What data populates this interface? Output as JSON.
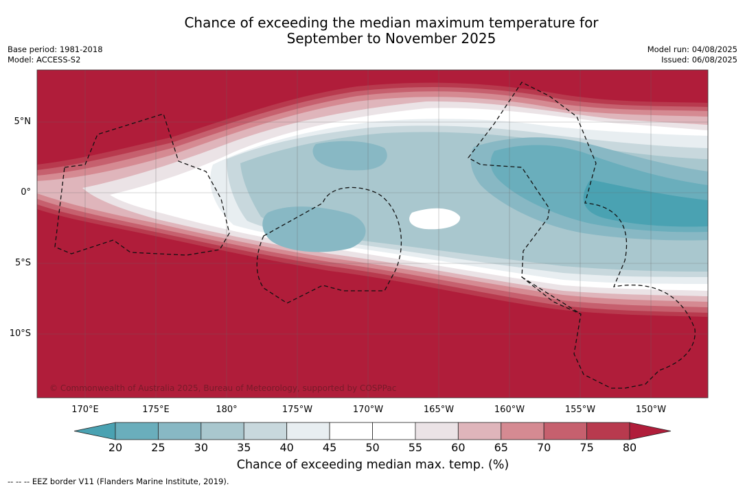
{
  "header": {
    "title_line1": "Chance of exceeding the median maximum temperature for",
    "title_line2": "September to November 2025",
    "base_period": "Base period: 1981-2018",
    "model": "Model: ACCESS-S2",
    "model_run": "Model run: 04/08/2025",
    "issued": "Issued: 06/08/2025"
  },
  "map": {
    "longitude_labels": [
      "170°E",
      "175°E",
      "180°",
      "175°W",
      "170°W",
      "165°W",
      "160°W",
      "155°W",
      "150°W"
    ],
    "latitude_labels": [
      "5°N",
      "0°",
      "5°S",
      "10°S"
    ],
    "copyright": "© Commonwealth of Australia 2025, Bureau of Meteorology, supported by COSPPac"
  },
  "colorbar": {
    "ticks": [
      "20",
      "25",
      "30",
      "35",
      "40",
      "45",
      "50",
      "55",
      "60",
      "65",
      "70",
      "75",
      "80"
    ],
    "colors": [
      "#4aa2b2",
      "#6aaebc",
      "#88b8c4",
      "#a9c7ce",
      "#c8d8dd",
      "#e8eef1",
      "#ffffff",
      "#ffffff",
      "#ebe3e6",
      "#dfb5bb",
      "#d58a92",
      "#c6606e",
      "#b83a4e",
      "#b01d3a"
    ],
    "title": "Chance of exceeding median max. temp. (%)"
  },
  "legend": {
    "eez_note": "--  --  -- EEZ border V11 (Flanders Marine Institute, 2019)."
  },
  "colors": {
    "high": "#b01d3a",
    "low": "#4aa2b2"
  }
}
